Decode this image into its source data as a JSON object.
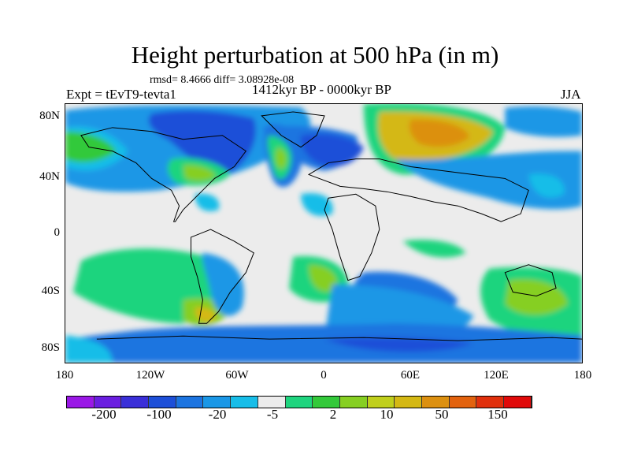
{
  "title": "Height perturbation at 500 hPa (in m)",
  "stats_line": "rmsd= 8.4666 diff= 3.08928e-08",
  "experiment": "Expt = tEvT9-tevta1",
  "period": "1412kyr BP - 0000kyr BP",
  "season": "JJA",
  "lat_labels": [
    "80N",
    "40N",
    "0",
    "40S",
    "80S"
  ],
  "lon_labels": [
    "180",
    "120W",
    "60W",
    "0",
    "60E",
    "120E",
    "180"
  ],
  "colorbar": {
    "colors": [
      "#9a18e6",
      "#6a1ee0",
      "#3a2fd8",
      "#1d4fd8",
      "#1c74e0",
      "#1a97e6",
      "#17bde8",
      "#ececec",
      "#1fd47e",
      "#33c93a",
      "#86cf22",
      "#c0cf1c",
      "#d4b814",
      "#dc9010",
      "#e2620e",
      "#e0300c",
      "#e00a0a"
    ],
    "labels": [
      "-200",
      "-100",
      "-20",
      "-5",
      "2",
      "10",
      "50",
      "150"
    ]
  },
  "map_colors": {
    "neutral": "#ececec",
    "lightblue": "#17bde8",
    "blue1": "#1a97e6",
    "blue2": "#1c74e0",
    "blue3": "#1d4fd8",
    "green1": "#1fd47e",
    "green2": "#33c93a",
    "yellowgreen": "#86cf22",
    "yellow": "#c0cf1c",
    "gold": "#d4b814",
    "orange": "#dc9010"
  }
}
